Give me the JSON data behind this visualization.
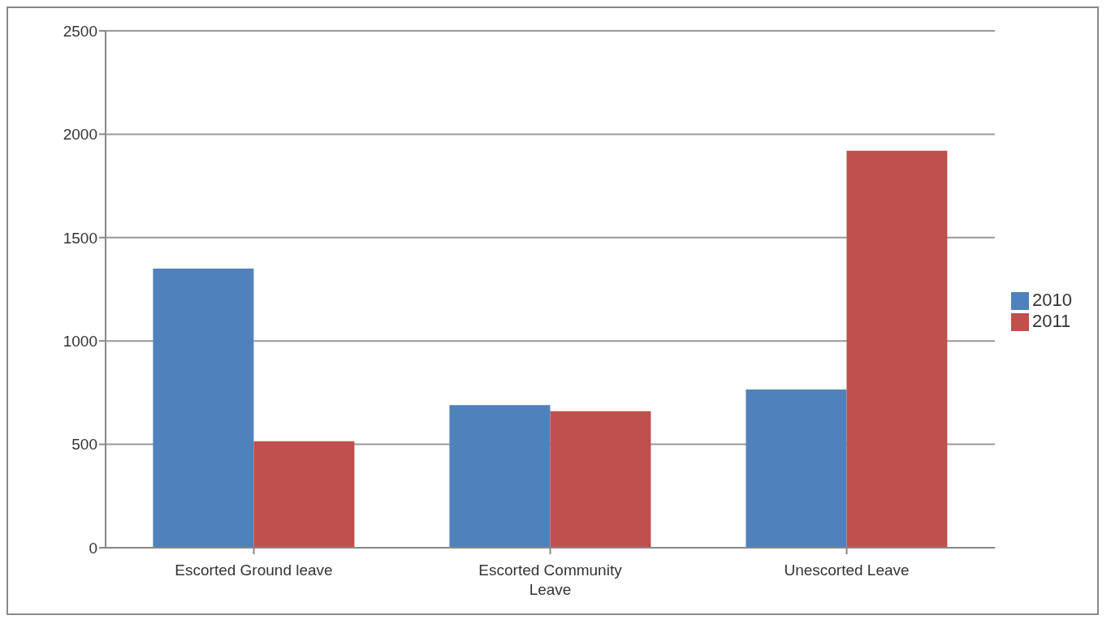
{
  "chart_data": {
    "type": "bar",
    "categories": [
      "Escorted Ground leave",
      "Escorted Community Leave",
      "Unescorted Leave"
    ],
    "series": [
      {
        "name": "2010",
        "color": "#4f81bd",
        "values": [
          1350,
          690,
          765
        ]
      },
      {
        "name": "2011",
        "color": "#c0504d",
        "values": [
          515,
          660,
          1920
        ]
      }
    ],
    "ylim": [
      0,
      2500
    ],
    "yticks": [
      0,
      500,
      1000,
      1500,
      2000,
      2500
    ],
    "grid": "y",
    "legend": "right"
  }
}
